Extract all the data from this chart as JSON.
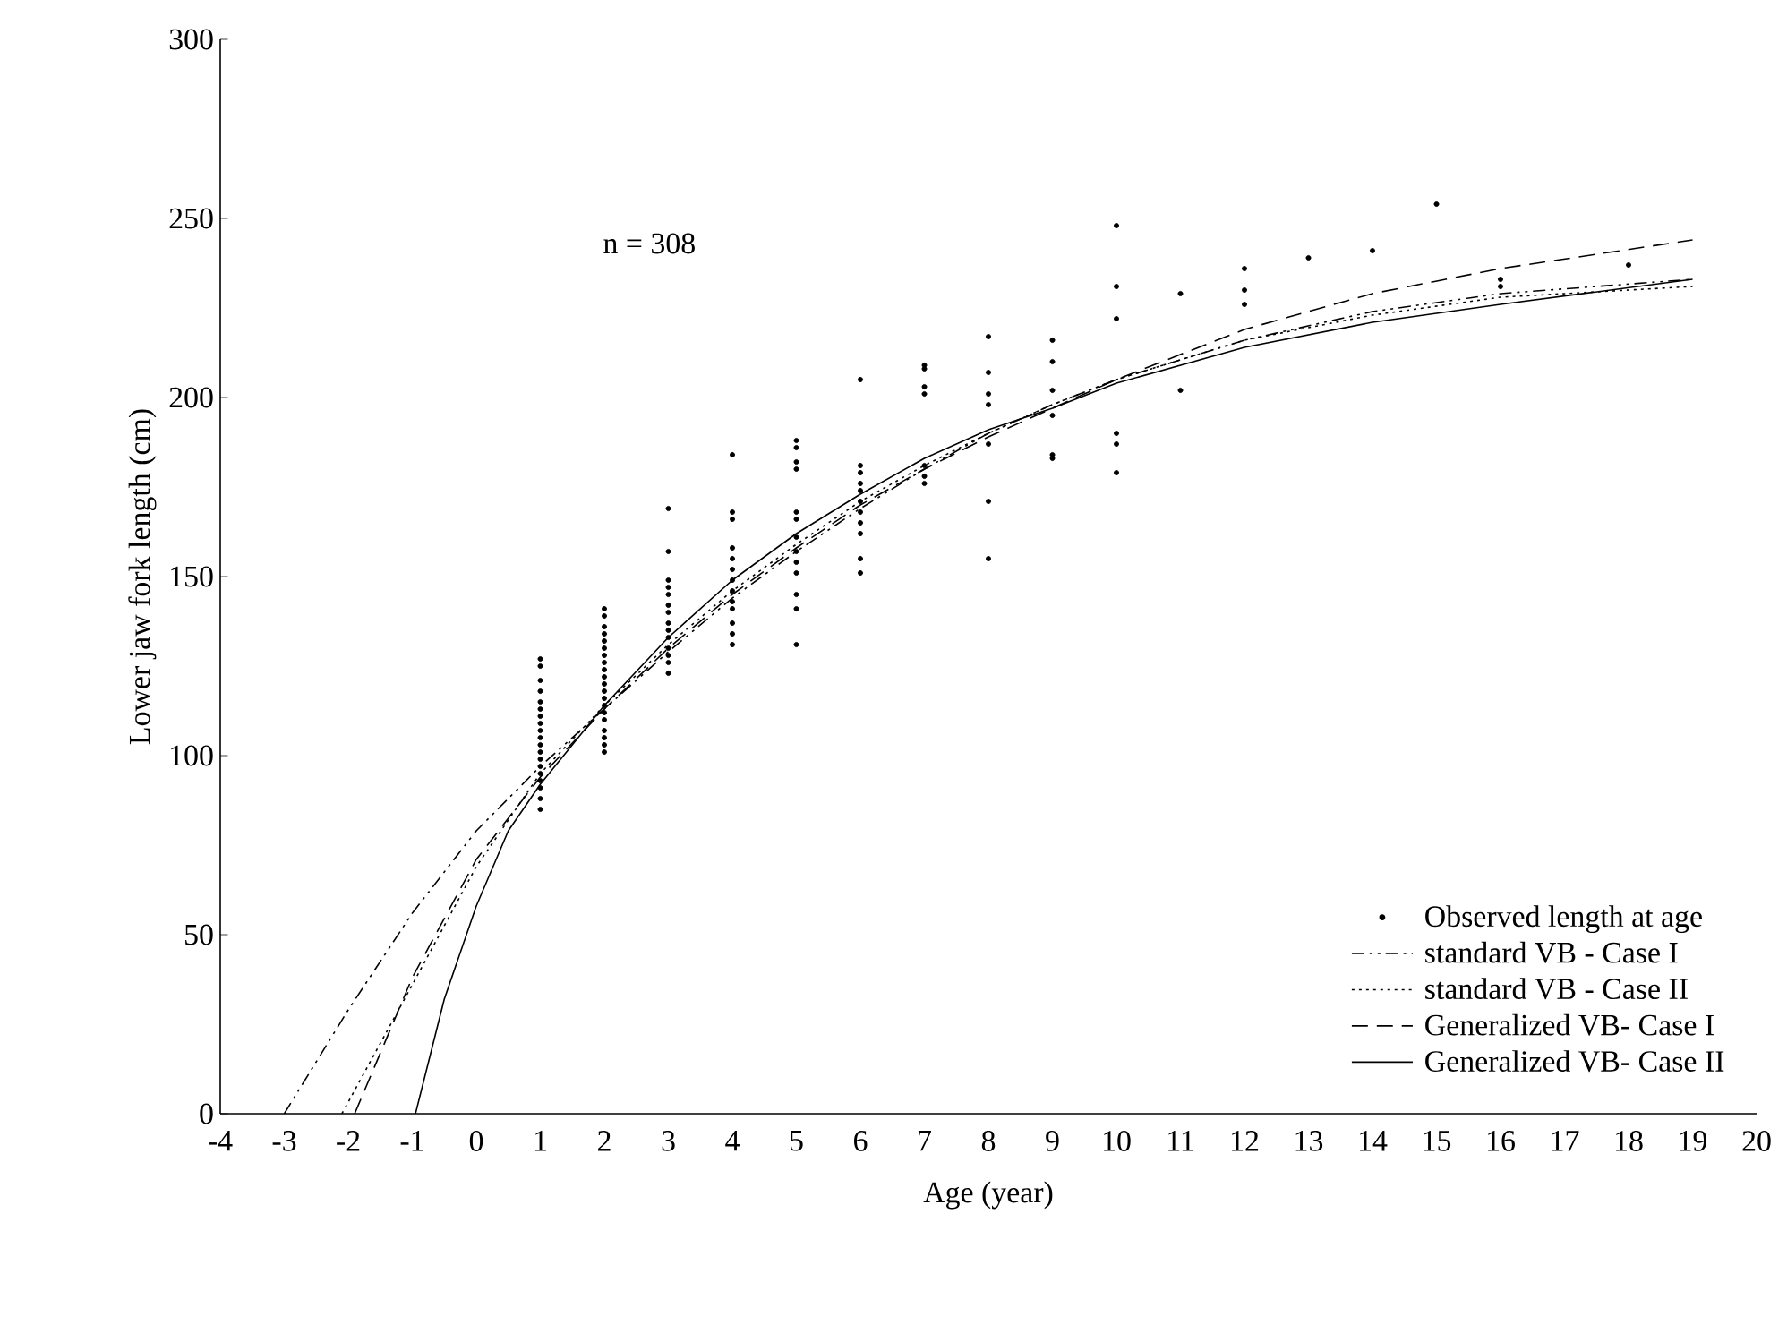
{
  "chart_data": {
    "type": "line",
    "xlabel": "Age (year)",
    "ylabel": "Lower jaw fork length (cm)",
    "annotations": [
      "n = 308"
    ],
    "xlim": [
      -4,
      20
    ],
    "xticks": [
      -4,
      -3,
      -2,
      -1,
      0,
      1,
      2,
      3,
      4,
      5,
      6,
      7,
      8,
      9,
      10,
      11,
      12,
      13,
      14,
      15,
      16,
      17,
      18,
      19,
      20
    ],
    "ylim": [
      0,
      300
    ],
    "yticks": [
      0,
      50,
      100,
      150,
      200,
      250,
      300
    ],
    "grid": false,
    "legend": "bottom right",
    "series": [
      {
        "name": "Observed length at age",
        "type": "scatter",
        "marker": "circle",
        "color": "#000000",
        "x": [
          1,
          1,
          1,
          1,
          1,
          1,
          1,
          1,
          1,
          1,
          1,
          1,
          1,
          1,
          1,
          1,
          1,
          1,
          1,
          2,
          2,
          2,
          2,
          2,
          2,
          2,
          2,
          2,
          2,
          2,
          2,
          2,
          2,
          2,
          2,
          2,
          2,
          2,
          2,
          3,
          3,
          3,
          3,
          3,
          3,
          3,
          3,
          3,
          3,
          3,
          3,
          3,
          3,
          4,
          4,
          4,
          4,
          4,
          4,
          4,
          4,
          4,
          4,
          4,
          4,
          4,
          5,
          5,
          5,
          5,
          5,
          5,
          5,
          5,
          5,
          5,
          5,
          5,
          5,
          6,
          6,
          6,
          6,
          6,
          6,
          6,
          6,
          6,
          6,
          6,
          7,
          7,
          7,
          7,
          7,
          7,
          7,
          8,
          8,
          8,
          8,
          8,
          8,
          8,
          9,
          9,
          9,
          9,
          9,
          9,
          10,
          10,
          10,
          10,
          10,
          10,
          11,
          11,
          12,
          12,
          12,
          13,
          14,
          15,
          16,
          16,
          18
        ],
        "values": [
          127,
          125,
          121,
          118,
          115,
          113,
          111,
          109,
          107,
          105,
          103,
          101,
          99,
          97,
          95,
          93,
          91,
          88,
          85,
          141,
          139,
          136,
          134,
          132,
          130,
          128,
          126,
          124,
          122,
          120,
          118,
          116,
          114,
          112,
          110,
          107,
          105,
          103,
          101,
          169,
          157,
          149,
          147,
          145,
          142,
          140,
          137,
          135,
          133,
          130,
          128,
          126,
          123,
          184,
          168,
          166,
          158,
          155,
          152,
          149,
          146,
          143,
          141,
          137,
          134,
          131,
          188,
          186,
          182,
          180,
          168,
          166,
          161,
          157,
          154,
          151,
          145,
          141,
          131,
          205,
          181,
          179,
          176,
          174,
          171,
          168,
          165,
          162,
          155,
          151,
          209,
          208,
          203,
          201,
          181,
          178,
          176,
          217,
          207,
          201,
          198,
          187,
          171,
          155,
          216,
          210,
          202,
          195,
          184,
          183,
          248,
          231,
          222,
          190,
          187,
          179,
          229,
          202,
          236,
          230,
          226,
          239,
          241,
          254,
          233,
          231,
          237
        ]
      },
      {
        "name": "standard VB - Case I",
        "line_style": "dashdot",
        "marker": "none",
        "color": "#000000",
        "x": [
          -3,
          -2,
          -1,
          0,
          1,
          2,
          3,
          4,
          5,
          6,
          7,
          8,
          9,
          10,
          12,
          14,
          16,
          19
        ],
        "values": [
          0,
          29,
          56,
          79,
          97,
          113,
          129,
          144,
          157,
          169,
          180,
          190,
          198,
          205,
          216,
          224,
          229,
          233
        ]
      },
      {
        "name": "standard VB - Case II",
        "line_style": "dotted",
        "marker": "none",
        "color": "#000000",
        "x": [
          -2.1,
          -1,
          0,
          1,
          2,
          3,
          4,
          5,
          6,
          7,
          8,
          9,
          10,
          12,
          14,
          16,
          19
        ],
        "values": [
          0,
          36,
          69,
          95,
          114,
          131,
          146,
          159,
          171,
          181,
          190,
          198,
          205,
          216,
          223,
          228,
          231
        ]
      },
      {
        "name": "Generalized VB- Case I",
        "line_style": "dashed",
        "marker": "none",
        "color": "#000000",
        "x": [
          -1.9,
          -1,
          0,
          1,
          2,
          3,
          4,
          5,
          6,
          7,
          8,
          9,
          10,
          12,
          14,
          16,
          19
        ],
        "values": [
          0,
          38,
          71,
          94,
          113,
          130,
          145,
          158,
          170,
          180,
          189,
          197,
          205,
          219,
          229,
          236,
          244
        ]
      },
      {
        "name": "Generalized VB- Case II",
        "line_style": "solid",
        "marker": "none",
        "color": "#000000",
        "x": [
          -0.95,
          -0.5,
          0,
          0.5,
          1,
          2,
          3,
          4,
          5,
          6,
          7,
          8,
          9,
          10,
          12,
          14,
          16,
          19
        ],
        "values": [
          0,
          32,
          58,
          79,
          92,
          114,
          133,
          149,
          162,
          173,
          183,
          191,
          197,
          204,
          214,
          221,
          226,
          233
        ]
      }
    ]
  }
}
